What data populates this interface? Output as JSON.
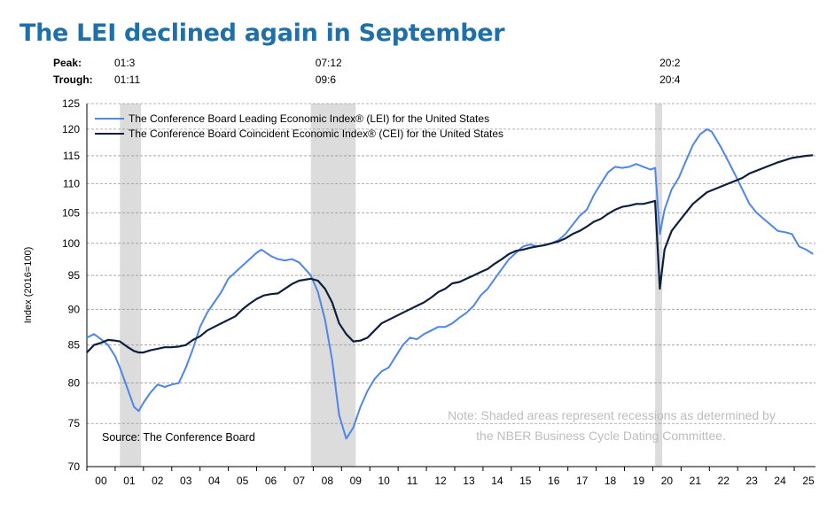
{
  "title": "The LEI declined again in September",
  "cycle_dates": {
    "peak_label": "Peak:",
    "trough_label": "Trough:",
    "peaks": [
      "01:3",
      "07:12",
      "20:2"
    ],
    "troughs": [
      "01:11",
      "09:6",
      "20:4"
    ]
  },
  "chart_data": {
    "type": "line",
    "title": "The LEI declined again in September",
    "ylabel": "Index (2016=100)",
    "xlabel": "",
    "y_scale": "log",
    "ylim": [
      70,
      125
    ],
    "xlim": [
      "2000-01",
      "2025-10"
    ],
    "yticks": [
      70,
      75,
      80,
      85,
      90,
      95,
      100,
      105,
      110,
      115,
      120,
      125
    ],
    "xtick_labels": [
      "00",
      "01",
      "02",
      "03",
      "04",
      "05",
      "06",
      "07",
      "08",
      "09",
      "10",
      "11",
      "12",
      "13",
      "14",
      "15",
      "16",
      "17",
      "18",
      "19",
      "20",
      "21",
      "22",
      "23",
      "24",
      "25"
    ],
    "grid": "horizontal dashed",
    "legend_position": "top-left",
    "source": "Source: The Conference Board",
    "note": "Note: Shaded areas represent recessions as determined by the NBER Business Cycle Dating Committee.",
    "recessions": [
      [
        "2001-03",
        "2001-11"
      ],
      [
        "2007-12",
        "2009-06"
      ],
      [
        "2020-02",
        "2020-04"
      ]
    ],
    "series": [
      {
        "name": "The Conference Board Leading Economic Index® (LEI) for the United States",
        "color": "#4f86e8",
        "points": [
          [
            "2000-01",
            86.0
          ],
          [
            "2000-04",
            86.5
          ],
          [
            "2000-07",
            85.8
          ],
          [
            "2000-10",
            85.0
          ],
          [
            "2001-01",
            83.5
          ],
          [
            "2001-03",
            82.0
          ],
          [
            "2001-06",
            79.5
          ],
          [
            "2001-09",
            77.0
          ],
          [
            "2001-11",
            76.5
          ],
          [
            "2002-01",
            77.5
          ],
          [
            "2002-04",
            78.8
          ],
          [
            "2002-07",
            79.8
          ],
          [
            "2002-10",
            79.5
          ],
          [
            "2003-01",
            79.8
          ],
          [
            "2003-04",
            80.0
          ],
          [
            "2003-07",
            82.0
          ],
          [
            "2003-10",
            84.5
          ],
          [
            "2004-01",
            87.5
          ],
          [
            "2004-04",
            89.5
          ],
          [
            "2004-07",
            91.0
          ],
          [
            "2004-10",
            92.5
          ],
          [
            "2005-01",
            94.5
          ],
          [
            "2005-04",
            95.5
          ],
          [
            "2005-07",
            96.5
          ],
          [
            "2005-10",
            97.5
          ],
          [
            "2006-01",
            98.5
          ],
          [
            "2006-03",
            99.0
          ],
          [
            "2006-07",
            98.0
          ],
          [
            "2006-10",
            97.5
          ],
          [
            "2007-01",
            97.3
          ],
          [
            "2007-04",
            97.5
          ],
          [
            "2007-07",
            97.0
          ],
          [
            "2007-12",
            95.0
          ],
          [
            "2008-03",
            92.5
          ],
          [
            "2008-06",
            88.5
          ],
          [
            "2008-09",
            83.0
          ],
          [
            "2008-12",
            76.0
          ],
          [
            "2009-03",
            73.2
          ],
          [
            "2009-06",
            74.5
          ],
          [
            "2009-09",
            77.0
          ],
          [
            "2009-12",
            79.0
          ],
          [
            "2010-03",
            80.5
          ],
          [
            "2010-06",
            81.5
          ],
          [
            "2010-09",
            82.0
          ],
          [
            "2010-12",
            83.5
          ],
          [
            "2011-03",
            85.0
          ],
          [
            "2011-06",
            86.0
          ],
          [
            "2011-09",
            85.8
          ],
          [
            "2011-12",
            86.5
          ],
          [
            "2012-03",
            87.0
          ],
          [
            "2012-06",
            87.5
          ],
          [
            "2012-09",
            87.5
          ],
          [
            "2012-12",
            88.0
          ],
          [
            "2013-03",
            88.8
          ],
          [
            "2013-06",
            89.5
          ],
          [
            "2013-09",
            90.5
          ],
          [
            "2013-12",
            92.0
          ],
          [
            "2014-03",
            93.0
          ],
          [
            "2014-06",
            94.5
          ],
          [
            "2014-09",
            96.0
          ],
          [
            "2014-12",
            97.5
          ],
          [
            "2015-03",
            98.5
          ],
          [
            "2015-06",
            99.5
          ],
          [
            "2015-09",
            99.8
          ],
          [
            "2015-12",
            99.5
          ],
          [
            "2016-03",
            99.7
          ],
          [
            "2016-06",
            100.0
          ],
          [
            "2016-09",
            100.5
          ],
          [
            "2016-12",
            101.5
          ],
          [
            "2017-03",
            103.0
          ],
          [
            "2017-06",
            104.5
          ],
          [
            "2017-09",
            105.5
          ],
          [
            "2017-12",
            108.0
          ],
          [
            "2018-03",
            110.0
          ],
          [
            "2018-06",
            112.0
          ],
          [
            "2018-09",
            113.0
          ],
          [
            "2018-12",
            112.8
          ],
          [
            "2019-03",
            113.0
          ],
          [
            "2019-06",
            113.5
          ],
          [
            "2019-09",
            113.0
          ],
          [
            "2019-12",
            112.5
          ],
          [
            "2020-02",
            112.8
          ],
          [
            "2020-04",
            101.5
          ],
          [
            "2020-06",
            105.5
          ],
          [
            "2020-09",
            109.0
          ],
          [
            "2020-12",
            111.0
          ],
          [
            "2021-03",
            114.0
          ],
          [
            "2021-06",
            117.0
          ],
          [
            "2021-09",
            119.0
          ],
          [
            "2021-12",
            120.0
          ],
          [
            "2022-02",
            119.5
          ],
          [
            "2022-04",
            118.0
          ],
          [
            "2022-06",
            116.5
          ],
          [
            "2022-09",
            114.0
          ],
          [
            "2022-12",
            111.5
          ],
          [
            "2023-03",
            109.0
          ],
          [
            "2023-06",
            106.5
          ],
          [
            "2023-09",
            105.0
          ],
          [
            "2023-12",
            104.0
          ],
          [
            "2024-03",
            103.0
          ],
          [
            "2024-06",
            102.0
          ],
          [
            "2024-09",
            101.8
          ],
          [
            "2024-12",
            101.5
          ],
          [
            "2025-03",
            99.5
          ],
          [
            "2025-06",
            99.0
          ],
          [
            "2025-09",
            98.3
          ]
        ]
      },
      {
        "name": "The Conference Board Coincident Economic Index® (CEI) for the United States",
        "color": "#0e1f3d",
        "points": [
          [
            "2000-01",
            84.0
          ],
          [
            "2000-04",
            85.0
          ],
          [
            "2000-07",
            85.3
          ],
          [
            "2000-10",
            85.7
          ],
          [
            "2001-01",
            85.6
          ],
          [
            "2001-03",
            85.5
          ],
          [
            "2001-06",
            84.8
          ],
          [
            "2001-09",
            84.2
          ],
          [
            "2001-11",
            84.0
          ],
          [
            "2002-01",
            84.0
          ],
          [
            "2002-04",
            84.3
          ],
          [
            "2002-07",
            84.5
          ],
          [
            "2002-10",
            84.7
          ],
          [
            "2003-01",
            84.7
          ],
          [
            "2003-04",
            84.8
          ],
          [
            "2003-07",
            85.0
          ],
          [
            "2003-10",
            85.7
          ],
          [
            "2004-01",
            86.2
          ],
          [
            "2004-04",
            87.0
          ],
          [
            "2004-07",
            87.5
          ],
          [
            "2004-10",
            88.0
          ],
          [
            "2005-01",
            88.5
          ],
          [
            "2005-04",
            89.0
          ],
          [
            "2005-07",
            90.0
          ],
          [
            "2005-10",
            90.8
          ],
          [
            "2006-01",
            91.5
          ],
          [
            "2006-04",
            92.0
          ],
          [
            "2006-07",
            92.2
          ],
          [
            "2006-10",
            92.3
          ],
          [
            "2007-01",
            93.0
          ],
          [
            "2007-04",
            93.7
          ],
          [
            "2007-07",
            94.2
          ],
          [
            "2007-12",
            94.5
          ],
          [
            "2008-03",
            94.2
          ],
          [
            "2008-06",
            93.0
          ],
          [
            "2008-09",
            91.0
          ],
          [
            "2008-12",
            88.0
          ],
          [
            "2009-03",
            86.5
          ],
          [
            "2009-06",
            85.5
          ],
          [
            "2009-09",
            85.6
          ],
          [
            "2009-12",
            86.0
          ],
          [
            "2010-03",
            87.0
          ],
          [
            "2010-06",
            88.0
          ],
          [
            "2010-09",
            88.5
          ],
          [
            "2010-12",
            89.0
          ],
          [
            "2011-03",
            89.5
          ],
          [
            "2011-06",
            90.0
          ],
          [
            "2011-09",
            90.5
          ],
          [
            "2011-12",
            91.0
          ],
          [
            "2012-03",
            91.7
          ],
          [
            "2012-06",
            92.5
          ],
          [
            "2012-09",
            93.0
          ],
          [
            "2012-12",
            93.8
          ],
          [
            "2013-03",
            94.0
          ],
          [
            "2013-06",
            94.5
          ],
          [
            "2013-09",
            95.0
          ],
          [
            "2013-12",
            95.5
          ],
          [
            "2014-03",
            96.0
          ],
          [
            "2014-06",
            96.8
          ],
          [
            "2014-09",
            97.5
          ],
          [
            "2014-12",
            98.3
          ],
          [
            "2015-03",
            98.8
          ],
          [
            "2015-06",
            99.0
          ],
          [
            "2015-09",
            99.3
          ],
          [
            "2015-12",
            99.5
          ],
          [
            "2016-03",
            99.7
          ],
          [
            "2016-06",
            100.0
          ],
          [
            "2016-09",
            100.3
          ],
          [
            "2016-12",
            100.8
          ],
          [
            "2017-03",
            101.5
          ],
          [
            "2017-06",
            102.0
          ],
          [
            "2017-09",
            102.7
          ],
          [
            "2017-12",
            103.5
          ],
          [
            "2018-03",
            104.0
          ],
          [
            "2018-06",
            104.8
          ],
          [
            "2018-09",
            105.5
          ],
          [
            "2018-12",
            106.0
          ],
          [
            "2019-03",
            106.2
          ],
          [
            "2019-06",
            106.5
          ],
          [
            "2019-09",
            106.5
          ],
          [
            "2019-12",
            106.8
          ],
          [
            "2020-02",
            107.0
          ],
          [
            "2020-04",
            93.0
          ],
          [
            "2020-06",
            99.0
          ],
          [
            "2020-09",
            102.0
          ],
          [
            "2020-12",
            103.5
          ],
          [
            "2021-03",
            105.0
          ],
          [
            "2021-06",
            106.5
          ],
          [
            "2021-09",
            107.5
          ],
          [
            "2021-12",
            108.5
          ],
          [
            "2022-03",
            109.0
          ],
          [
            "2022-06",
            109.5
          ],
          [
            "2022-09",
            110.0
          ],
          [
            "2022-12",
            110.5
          ],
          [
            "2023-03",
            111.0
          ],
          [
            "2023-06",
            111.8
          ],
          [
            "2023-09",
            112.3
          ],
          [
            "2023-12",
            112.8
          ],
          [
            "2024-03",
            113.3
          ],
          [
            "2024-06",
            113.8
          ],
          [
            "2024-09",
            114.2
          ],
          [
            "2024-12",
            114.6
          ],
          [
            "2025-03",
            114.8
          ],
          [
            "2025-06",
            115.0
          ],
          [
            "2025-09",
            115.1
          ]
        ]
      }
    ]
  }
}
